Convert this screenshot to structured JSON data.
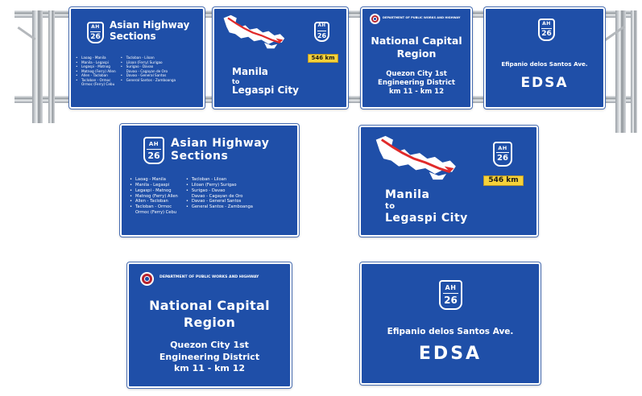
{
  "colors": {
    "sign_blue": "#1f4fa8",
    "distance_badge": "#f6d23a",
    "route_line": "#e02a2a",
    "dpwh_seal": "#b5222d"
  },
  "icons": [
    "route-shield-icon",
    "philippines-map-icon",
    "dpwh-seal-icon"
  ],
  "shield": {
    "top": "AH",
    "number": "26"
  },
  "asian_highway": {
    "title_line1": "Asian Highway",
    "title_line2": "Sections",
    "col1": [
      "Laoag - Manila",
      "Manila - Legaspi",
      "Legaspi - Matnog",
      "Matnog (Ferry) Allen",
      "Allen - Tacloban",
      "Tacloban - Ormoc",
      "Ormoc (Ferry) Cebu"
    ],
    "col2": [
      "Tacloban - Liloan",
      "Liloan (Ferry) Surigao",
      "Surigao - Davao",
      "Davao - Cagayan de Oro",
      "Davao - General Santos",
      "General Santos - Zamboanga"
    ]
  },
  "manila_legaspi": {
    "distance": "546 km",
    "line1": "Manila",
    "line2": "to",
    "line3": "Legaspi City"
  },
  "ncr": {
    "department": "DEPARTMENT OF PUBLIC WORKS AND HIGHWAY",
    "line1": "National Capital",
    "line2": "Region",
    "line3": "Quezon City 1st",
    "line4": "Engineering District",
    "line5": "km 11 - km 12"
  },
  "edsa": {
    "full_name": "Efipanio delos Santos Ave.",
    "short_name": "EDSA"
  }
}
